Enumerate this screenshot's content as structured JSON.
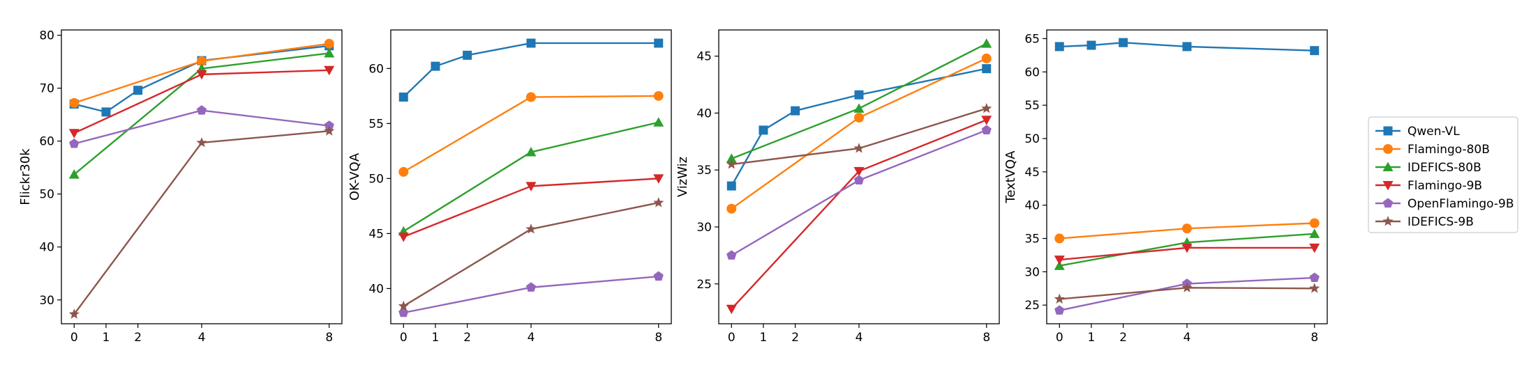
{
  "chart_data": [
    {
      "type": "line",
      "ylabel": "Flickr30k",
      "xlabel": "",
      "x": [
        0,
        1,
        2,
        4,
        8
      ],
      "xticks": [
        0,
        1,
        2,
        4,
        8
      ],
      "xlim": [
        -0.4,
        8.4
      ],
      "ylim": [
        25.5,
        81
      ],
      "yticks": [
        30,
        40,
        50,
        60,
        70,
        80
      ],
      "series": [
        {
          "name": "Qwen-VL",
          "x": [
            0,
            1,
            2,
            4,
            8
          ],
          "values": [
            67.0,
            65.5,
            69.6,
            75.2,
            78.0
          ]
        },
        {
          "name": "Flamingo-80B",
          "x": [
            0,
            4,
            8
          ],
          "values": [
            67.2,
            75.1,
            78.4
          ]
        },
        {
          "name": "IDEFICS-80B",
          "x": [
            0,
            4,
            8
          ],
          "values": [
            53.7,
            73.7,
            76.6
          ]
        },
        {
          "name": "Flamingo-9B",
          "x": [
            0,
            4,
            8
          ],
          "values": [
            61.5,
            72.6,
            73.4
          ]
        },
        {
          "name": "OpenFlamingo-9B",
          "x": [
            0,
            4,
            8
          ],
          "values": [
            59.5,
            65.8,
            62.9
          ]
        },
        {
          "name": "IDEFICS-9B",
          "x": [
            0,
            4,
            8
          ],
          "values": [
            27.3,
            59.7,
            61.9
          ]
        }
      ]
    },
    {
      "type": "line",
      "ylabel": "OK-VQA",
      "xlabel": "",
      "x": [
        0,
        1,
        2,
        4,
        8
      ],
      "xticks": [
        0,
        1,
        2,
        4,
        8
      ],
      "xlim": [
        -0.4,
        8.4
      ],
      "ylim": [
        36.8,
        63.5
      ],
      "yticks": [
        40,
        45,
        50,
        55,
        60
      ],
      "series": [
        {
          "name": "Qwen-VL",
          "x": [
            0,
            1,
            2,
            4,
            8
          ],
          "values": [
            57.4,
            60.2,
            61.2,
            62.3,
            62.3
          ]
        },
        {
          "name": "Flamingo-80B",
          "x": [
            0,
            4,
            8
          ],
          "values": [
            50.6,
            57.4,
            57.5
          ]
        },
        {
          "name": "IDEFICS-80B",
          "x": [
            0,
            4,
            8
          ],
          "values": [
            45.2,
            52.4,
            55.1
          ]
        },
        {
          "name": "Flamingo-9B",
          "x": [
            0,
            4,
            8
          ],
          "values": [
            44.7,
            49.3,
            50.0
          ]
        },
        {
          "name": "OpenFlamingo-9B",
          "x": [
            0,
            4,
            8
          ],
          "values": [
            37.8,
            40.1,
            41.1
          ]
        },
        {
          "name": "IDEFICS-9B",
          "x": [
            0,
            4,
            8
          ],
          "values": [
            38.4,
            45.4,
            47.8
          ]
        }
      ]
    },
    {
      "type": "line",
      "ylabel": "VizWiz",
      "xlabel": "",
      "x": [
        0,
        1,
        2,
        4,
        8
      ],
      "xticks": [
        0,
        1,
        2,
        4,
        8
      ],
      "xlim": [
        -0.4,
        8.4
      ],
      "ylim": [
        21.5,
        47.3
      ],
      "yticks": [
        25,
        30,
        35,
        40,
        45
      ],
      "series": [
        {
          "name": "Qwen-VL",
          "x": [
            0,
            1,
            2,
            4,
            8
          ],
          "values": [
            33.6,
            38.5,
            40.2,
            41.6,
            43.9
          ]
        },
        {
          "name": "Flamingo-80B",
          "x": [
            0,
            4,
            8
          ],
          "values": [
            31.6,
            39.6,
            44.8
          ]
        },
        {
          "name": "IDEFICS-80B",
          "x": [
            0,
            4,
            8
          ],
          "values": [
            36.0,
            40.4,
            46.1
          ]
        },
        {
          "name": "Flamingo-9B",
          "x": [
            0,
            4,
            8
          ],
          "values": [
            22.8,
            34.9,
            39.4
          ]
        },
        {
          "name": "OpenFlamingo-9B",
          "x": [
            0,
            4,
            8
          ],
          "values": [
            27.5,
            34.1,
            38.5
          ]
        },
        {
          "name": "IDEFICS-9B",
          "x": [
            0,
            4,
            8
          ],
          "values": [
            35.5,
            36.9,
            40.4
          ]
        }
      ]
    },
    {
      "type": "line",
      "ylabel": "TextVQA",
      "xlabel": "",
      "x": [
        0,
        1,
        2,
        4,
        8
      ],
      "xticks": [
        0,
        1,
        2,
        4,
        8
      ],
      "xlim": [
        -0.4,
        8.4
      ],
      "ylim": [
        22.2,
        66.3
      ],
      "yticks": [
        25,
        30,
        35,
        40,
        45,
        50,
        55,
        60,
        65
      ],
      "series": [
        {
          "name": "Qwen-VL",
          "x": [
            0,
            1,
            2,
            4,
            8
          ],
          "values": [
            63.8,
            64.0,
            64.4,
            63.8,
            63.2
          ]
        },
        {
          "name": "Flamingo-80B",
          "x": [
            0,
            4,
            8
          ],
          "values": [
            35.0,
            36.5,
            37.3
          ]
        },
        {
          "name": "IDEFICS-80B",
          "x": [
            0,
            4,
            8
          ],
          "values": [
            30.9,
            34.4,
            35.7
          ]
        },
        {
          "name": "Flamingo-9B",
          "x": [
            0,
            4,
            8
          ],
          "values": [
            31.8,
            33.6,
            33.6
          ]
        },
        {
          "name": "OpenFlamingo-9B",
          "x": [
            0,
            4,
            8
          ],
          "values": [
            24.2,
            28.2,
            29.1
          ]
        },
        {
          "name": "IDEFICS-9B",
          "x": [
            0,
            4,
            8
          ],
          "values": [
            25.9,
            27.6,
            27.5
          ]
        }
      ]
    }
  ],
  "legend": {
    "placement": "right",
    "entries": [
      {
        "name": "Qwen-VL",
        "color": "#1f77b4",
        "marker": "square"
      },
      {
        "name": "Flamingo-80B",
        "color": "#ff7f0e",
        "marker": "circle"
      },
      {
        "name": "IDEFICS-80B",
        "color": "#2ca02c",
        "marker": "triangle-up"
      },
      {
        "name": "Flamingo-9B",
        "color": "#d62728",
        "marker": "triangle-down"
      },
      {
        "name": "OpenFlamingo-9B",
        "color": "#9467bd",
        "marker": "pentagon"
      },
      {
        "name": "IDEFICS-9B",
        "color": "#8c564b",
        "marker": "star"
      }
    ]
  },
  "grid": false
}
